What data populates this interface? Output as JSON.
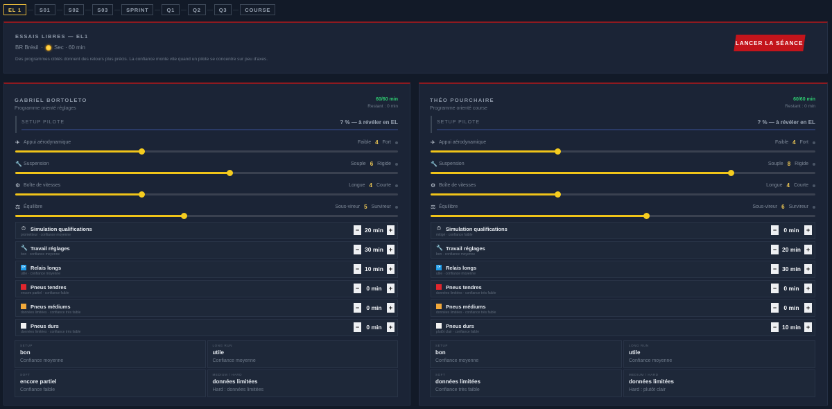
{
  "nav": {
    "items": [
      {
        "label": "EL 1",
        "active": true
      },
      {
        "label": "S01",
        "active": false
      },
      {
        "label": "S02",
        "active": false
      },
      {
        "label": "S03",
        "active": false
      },
      {
        "label": "SPRINT",
        "active": false
      },
      {
        "label": "Q1",
        "active": false
      },
      {
        "label": "Q2",
        "active": false
      },
      {
        "label": "Q3",
        "active": false
      },
      {
        "label": "COURSE",
        "active": false
      }
    ]
  },
  "session": {
    "title": "ESSAIS LIBRES — EL1",
    "country": "BR Brésil",
    "separator": "·",
    "weather_icon": "sun-icon",
    "weather": "Sec · 60 min",
    "description": "Des programmes ciblés donnent des retours plus précis. La confiance monte vite quand un pilote se concentre sur peu d'axes.",
    "launch_label": "LANCER LA SÉANCE"
  },
  "colors": {
    "accent": "#f0c419",
    "danger": "#c3141b",
    "ok": "#2ecc71",
    "soft_tyre": "#e0262d",
    "medium_tyre": "#f2a93b",
    "hard_tyre": "#f2f2f2",
    "longrun_icon": "#1e9be8"
  },
  "drivers": [
    {
      "name": "GABRIEL BORTOLETO",
      "program": "Programme orienté réglages",
      "time": "60/60 min",
      "remaining": "Restant : 0 min",
      "setup_label": "SETUP PILOTE",
      "setup_value": "? % — à révéler en EL",
      "sliders": [
        {
          "icon": "wing-icon",
          "glyph": "✈",
          "label": "Appui aérodynamique",
          "low": "Faible",
          "value": "4",
          "high": "Fort",
          "level": 0.33
        },
        {
          "icon": "wrench-icon",
          "glyph": "🔧",
          "label": "Suspension",
          "low": "Souple",
          "value": "6",
          "high": "Rigide",
          "level": 0.56
        },
        {
          "icon": "gear-icon",
          "glyph": "⚙",
          "label": "Boîte de vitesses",
          "low": "Longue",
          "value": "4",
          "high": "Courte",
          "level": 0.33
        },
        {
          "icon": "balance-icon",
          "glyph": "⚖",
          "label": "Équilibre",
          "low": "Sous-vireur",
          "value": "5",
          "high": "Survireur",
          "level": 0.44
        }
      ],
      "programs": [
        {
          "icon": "stopwatch-icon",
          "glyph": "⏱",
          "title": "Simulation qualifications",
          "sub": "prometteur · confiance moyenne",
          "minutes": "20 min"
        },
        {
          "icon": "wrench-icon",
          "glyph": "🔧",
          "title": "Travail réglages",
          "sub": "bon · confiance moyenne",
          "minutes": "30 min"
        },
        {
          "icon": "repeat-icon",
          "glyph": "🔁",
          "title": "Relais longs",
          "sub": "utile · confiance moyenne",
          "minutes": "10 min"
        },
        {
          "icon": "soft-tyre-icon",
          "glyph": "",
          "title": "Pneus tendres",
          "sub": "encore partiel · confiance faible",
          "minutes": "0 min"
        },
        {
          "icon": "medium-tyre-icon",
          "glyph": "",
          "title": "Pneus médiums",
          "sub": "données limitées · confiance très faible",
          "minutes": "0 min"
        },
        {
          "icon": "hard-tyre-icon",
          "glyph": "",
          "title": "Pneus durs",
          "sub": "données limitées · confiance très faible",
          "minutes": "0 min"
        }
      ],
      "info": [
        {
          "label": "SETUP",
          "value": "bon",
          "sub": "Confiance moyenne"
        },
        {
          "label": "LONG RUN",
          "value": "utile",
          "sub": "Confiance moyenne"
        },
        {
          "label": "SOFT",
          "value": "encore partiel",
          "sub": "Confiance faible"
        },
        {
          "label": "MEDIUM / HARD",
          "value": "données limitées",
          "sub": "Hard : données limitées"
        }
      ]
    },
    {
      "name": "THÉO POURCHAIRE",
      "program": "Programme orienté course",
      "time": "60/60 min",
      "remaining": "Restant : 0 min",
      "setup_label": "SETUP PILOTE",
      "setup_value": "? % — à révéler en EL",
      "sliders": [
        {
          "icon": "wing-icon",
          "glyph": "✈",
          "label": "Appui aérodynamique",
          "low": "Faible",
          "value": "4",
          "high": "Fort",
          "level": 0.33
        },
        {
          "icon": "wrench-icon",
          "glyph": "🔧",
          "label": "Suspension",
          "low": "Souple",
          "value": "8",
          "high": "Rigide",
          "level": 0.78
        },
        {
          "icon": "gear-icon",
          "glyph": "⚙",
          "label": "Boîte de vitesses",
          "low": "Longue",
          "value": "4",
          "high": "Courte",
          "level": 0.33
        },
        {
          "icon": "balance-icon",
          "glyph": "⚖",
          "label": "Équilibre",
          "low": "Sous-vireur",
          "value": "6",
          "high": "Survireur",
          "level": 0.56
        }
      ],
      "programs": [
        {
          "icon": "stopwatch-icon",
          "glyph": "⏱",
          "title": "Simulation qualifications",
          "sub": "mitigé · confiance faible",
          "minutes": "0 min"
        },
        {
          "icon": "wrench-icon",
          "glyph": "🔧",
          "title": "Travail réglages",
          "sub": "bon · confiance moyenne",
          "minutes": "20 min"
        },
        {
          "icon": "repeat-icon",
          "glyph": "🔁",
          "title": "Relais longs",
          "sub": "utile · confiance moyenne",
          "minutes": "30 min"
        },
        {
          "icon": "soft-tyre-icon",
          "glyph": "",
          "title": "Pneus tendres",
          "sub": "données limitées · confiance très faible",
          "minutes": "0 min"
        },
        {
          "icon": "medium-tyre-icon",
          "glyph": "",
          "title": "Pneus médiums",
          "sub": "données limitées · confiance très faible",
          "minutes": "0 min"
        },
        {
          "icon": "hard-tyre-icon",
          "glyph": "",
          "title": "Pneus durs",
          "sub": "plutôt clair · confiance faible",
          "minutes": "10 min"
        }
      ],
      "info": [
        {
          "label": "SETUP",
          "value": "bon",
          "sub": "Confiance moyenne"
        },
        {
          "label": "LONG RUN",
          "value": "utile",
          "sub": "Confiance moyenne"
        },
        {
          "label": "SOFT",
          "value": "données limitées",
          "sub": "Confiance très faible"
        },
        {
          "label": "MEDIUM / HARD",
          "value": "données limitées",
          "sub": "Hard : plutôt clair"
        }
      ]
    }
  ]
}
